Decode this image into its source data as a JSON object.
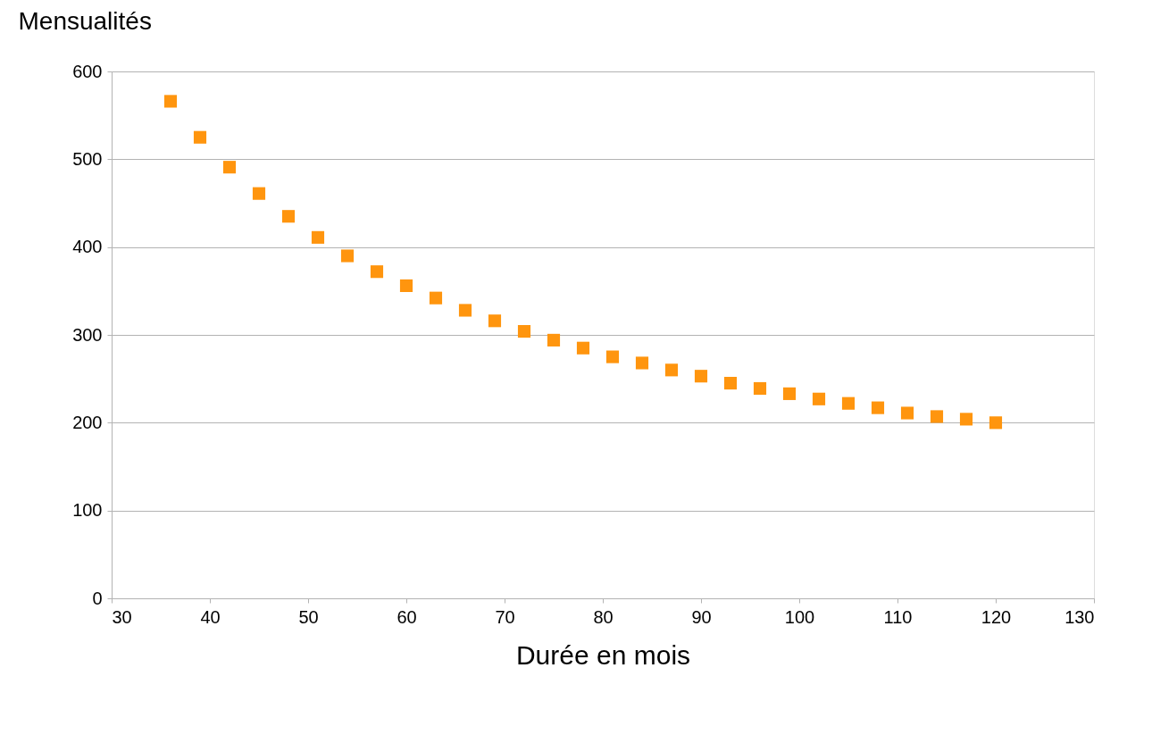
{
  "chart_data": {
    "type": "scatter",
    "ylabel": "Mensualités",
    "xlabel": "Durée en mois",
    "x": [
      36,
      39,
      42,
      45,
      48,
      51,
      54,
      57,
      60,
      63,
      66,
      69,
      72,
      75,
      78,
      81,
      84,
      87,
      90,
      93,
      96,
      99,
      102,
      105,
      108,
      111,
      114,
      117,
      120
    ],
    "series": [
      {
        "color": "#ff950e",
        "values": [
          566,
          525,
          491,
          461,
          435,
          411,
          390,
          372,
          356,
          342,
          328,
          316,
          304,
          294,
          285,
          275,
          268,
          260,
          253,
          245,
          239,
          233,
          227,
          222,
          217,
          211,
          207,
          204,
          200
        ]
      }
    ],
    "xlim": [
      30,
      130
    ],
    "xticks": [
      30,
      40,
      50,
      60,
      70,
      80,
      90,
      100,
      110,
      120,
      130
    ],
    "ylim": [
      0,
      600
    ],
    "yticks": [
      0,
      100,
      200,
      300,
      400,
      500,
      600
    ],
    "grid": "y",
    "marker": "square",
    "legend": false
  }
}
